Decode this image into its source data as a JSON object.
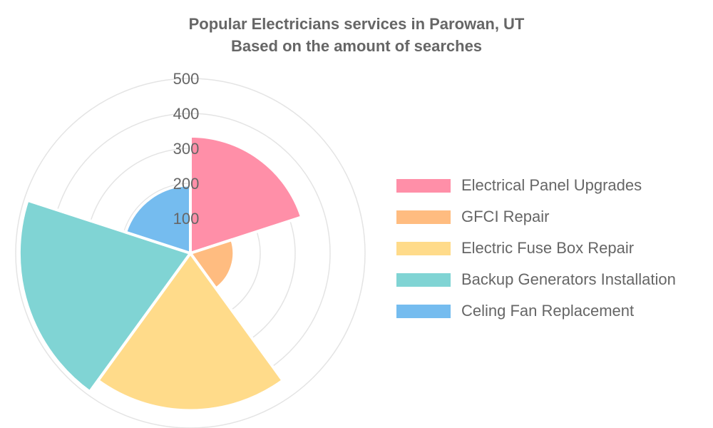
{
  "chart_data": {
    "type": "polarArea",
    "title": [
      "Popular Electricians services in Parowan, UT",
      "Based on the amount of searches"
    ],
    "categories": [
      "Electrical Panel Upgrades",
      "GFCI Repair",
      "Electric Fuse Box Repair",
      "Backup Generators Installation",
      "Celing Fan Replacement"
    ],
    "values": [
      335,
      125,
      450,
      490,
      195
    ],
    "colors": [
      "#FF8FA8",
      "#FFBC80",
      "#FFDB8A",
      "#80D4D4",
      "#75BCEF"
    ],
    "r_ticks": [
      100,
      200,
      300,
      400,
      500
    ],
    "rlim": [
      0,
      500
    ],
    "grid": true,
    "legend_position": "right"
  }
}
